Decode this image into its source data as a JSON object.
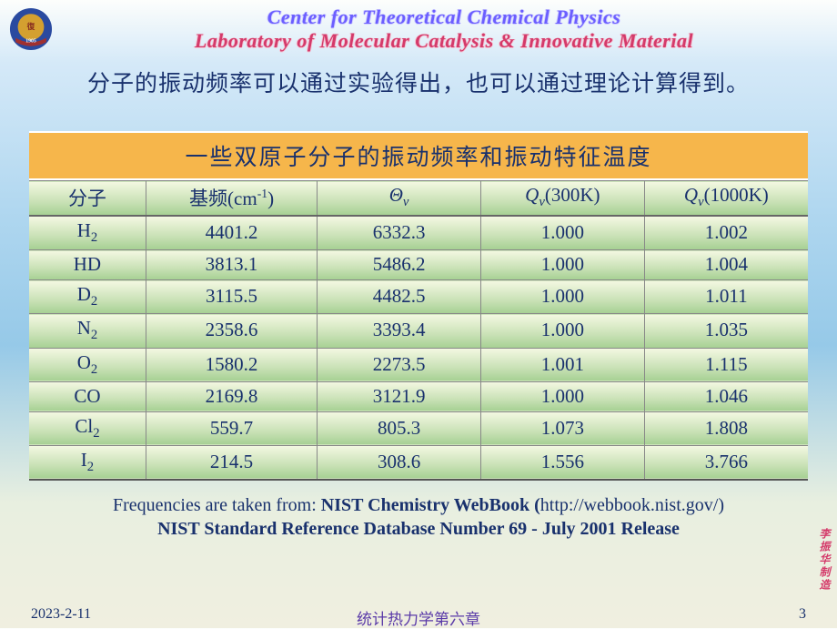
{
  "header": {
    "title1": "Center for Theoretical Chemical Physics",
    "title2": "Laboratory of Molecular Catalysis & Innovative Material",
    "logo": {
      "outer": "#2a4aa0",
      "inner": "#d4a030",
      "band": "#a03030",
      "year": "1905"
    }
  },
  "intro": "分子的振动频率可以通过实验得出，也可以通过理论计算得到。",
  "table": {
    "caption": "一些双原子分子的振动频率和振动特征温度",
    "headers": {
      "mol": "分子",
      "freq_pre": "基频(cm",
      "freq_sup": "-1",
      "freq_post": ")",
      "theta": "Θ",
      "theta_sub": "v",
      "q300_pre": "Q",
      "q300_sub": "v",
      "q300_post": "(300K)",
      "q1000_pre": "Q",
      "q1000_sub": "v",
      "q1000_post": "(1000K)"
    },
    "rows": [
      {
        "mol_pre": "H",
        "mol_sub": "2",
        "freq": "4401.2",
        "theta": "6332.3",
        "q300": "1.000",
        "q1000": "1.002"
      },
      {
        "mol_pre": "HD",
        "mol_sub": "",
        "freq": "3813.1",
        "theta": "5486.2",
        "q300": "1.000",
        "q1000": "1.004"
      },
      {
        "mol_pre": "D",
        "mol_sub": "2",
        "freq": "3115.5",
        "theta": "4482.5",
        "q300": "1.000",
        "q1000": "1.011"
      },
      {
        "mol_pre": "N",
        "mol_sub": "2",
        "freq": "2358.6",
        "theta": "3393.4",
        "q300": "1.000",
        "q1000": "1.035"
      },
      {
        "mol_pre": "O",
        "mol_sub": "2",
        "freq": "1580.2",
        "theta": "2273.5",
        "q300": "1.001",
        "q1000": "1.115"
      },
      {
        "mol_pre": "CO",
        "mol_sub": "",
        "freq": "2169.8",
        "theta": "3121.9",
        "q300": "1.000",
        "q1000": "1.046"
      },
      {
        "mol_pre": "Cl",
        "mol_sub": "2",
        "freq": "559.7",
        "theta": "805.3",
        "q300": "1.073",
        "q1000": "1.808"
      },
      {
        "mol_pre": "I",
        "mol_sub": "2",
        "freq": "214.5",
        "theta": "308.6",
        "q300": "1.556",
        "q1000": "3.766"
      }
    ]
  },
  "source": {
    "pre": "Frequencies are taken from:  ",
    "b1": "NIST Chemistry WebBook (",
    "url": "http://webbook.nist.gov/",
    "b1post": ")",
    "b2": "NIST Standard Reference Database Number 69 - July 2001 Release"
  },
  "footer": {
    "date": "2023-2-11",
    "center": "统计热力学第六章",
    "page": "3"
  },
  "side": "李振华制造"
}
